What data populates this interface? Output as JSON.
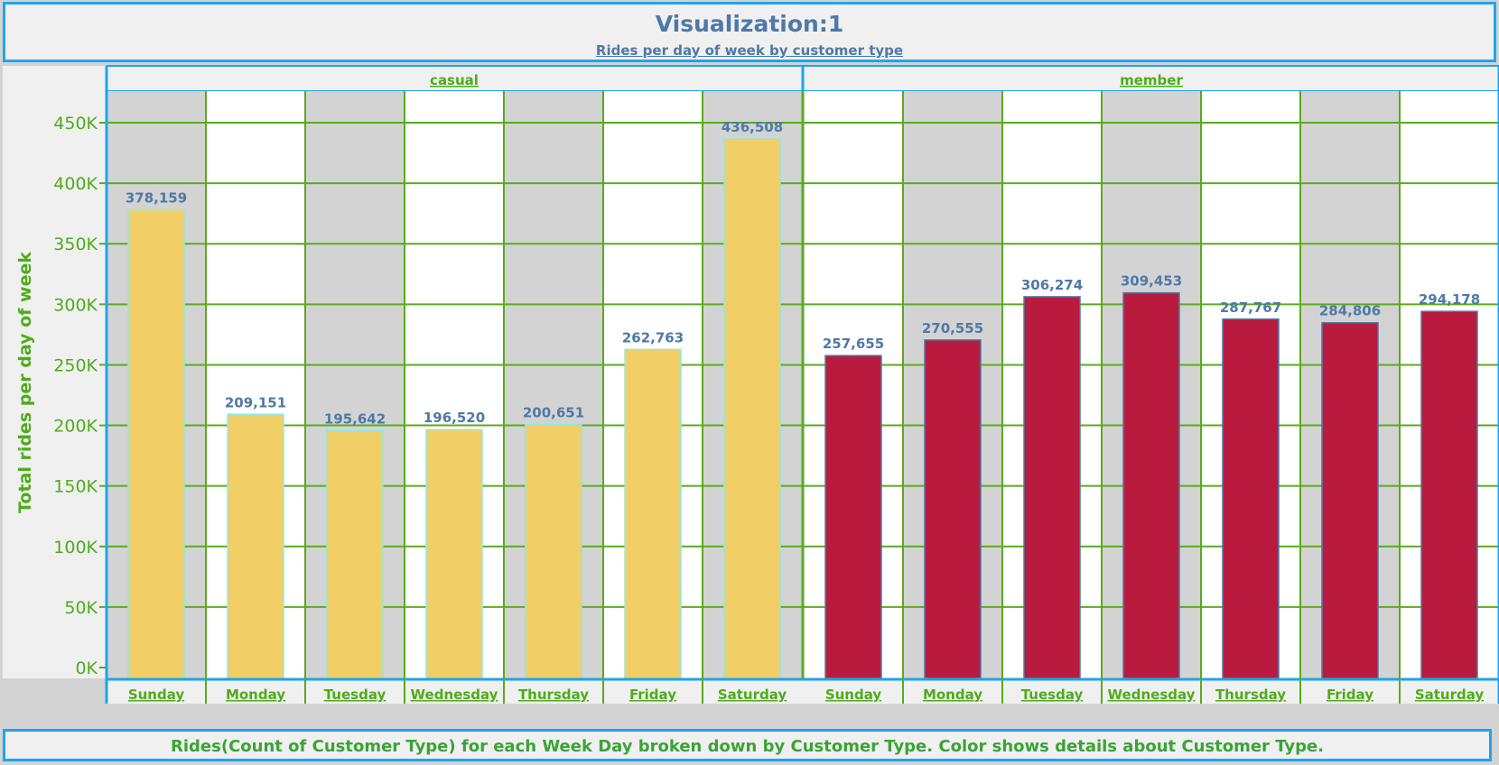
{
  "header": {
    "title": "Visualization:1",
    "subtitle": "Rides per day of week by customer type"
  },
  "footer": {
    "caption": "Rides(Count of Customer Type) for each Week Day broken down by Customer Type.  Color shows details about Customer Type."
  },
  "colors": {
    "casual": "#f2cf66",
    "member": "#b81b3e",
    "grid": "#5aab1b",
    "accent_border": "#1ea4ee",
    "label_blue": "#4e79a7",
    "axis_green": "#4fab1b"
  },
  "chart_data": {
    "type": "bar",
    "ylabel": "Total rides per day of week",
    "ylim": [
      0,
      450000
    ],
    "yticks": [
      0,
      50000,
      100000,
      150000,
      200000,
      250000,
      300000,
      350000,
      400000,
      450000
    ],
    "ytick_labels": [
      "0K",
      "50K",
      "100K",
      "150K",
      "200K",
      "250K",
      "300K",
      "350K",
      "400K",
      "450K"
    ],
    "categories": [
      "Sunday",
      "Monday",
      "Tuesday",
      "Wednesday",
      "Thursday",
      "Friday",
      "Saturday"
    ],
    "grid": true,
    "panels": [
      {
        "name": "casual",
        "values": [
          378159,
          209151,
          195642,
          196520,
          200651,
          262763,
          436508
        ],
        "value_labels": [
          "378,159",
          "209,151",
          "195,642",
          "196,520",
          "200,651",
          "262,763",
          "436,508"
        ]
      },
      {
        "name": "member",
        "values": [
          257655,
          270555,
          306274,
          309453,
          287767,
          284806,
          294178
        ],
        "value_labels": [
          "257,655",
          "270,555",
          "306,274",
          "309,453",
          "287,767",
          "284,806",
          "294,178"
        ]
      }
    ]
  }
}
